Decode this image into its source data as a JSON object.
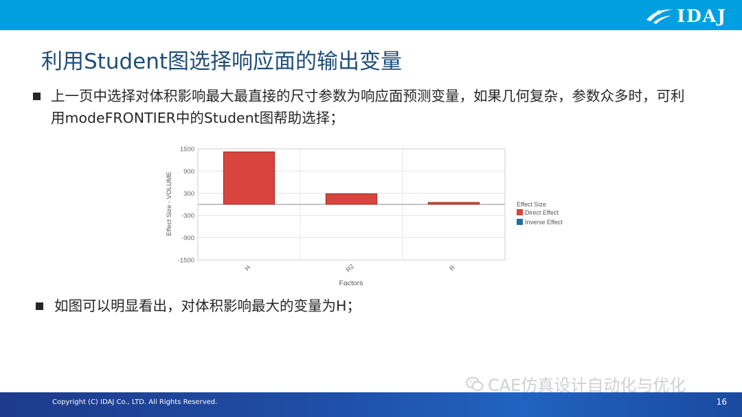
{
  "header": {
    "logo_text": "IDAJ"
  },
  "title": "利用Student图选择响应面的输出变量",
  "bullets": [
    "上一页中选择对体积影响最大最直接的尺寸参数为响应面预测变量，如果几何复杂，参数众多时，可利用modeFRONTIER中的Student图帮助选择；",
    "如图可以明显看出，对体积影响最大的变量为H；"
  ],
  "chart_data": {
    "type": "bar",
    "categories": [
      "H",
      "R2",
      "R"
    ],
    "series": [
      {
        "name": "Direct Effect",
        "values": [
          1420,
          290,
          55
        ],
        "color": "#d9443f"
      },
      {
        "name": "Inverse Effect",
        "values": [
          0,
          0,
          0
        ],
        "color": "#1f6fa0"
      }
    ],
    "xlabel": "Factors",
    "ylabel": "Effect Size - VOLUME",
    "yticks": [
      "1500",
      "900",
      "300",
      "-300",
      "-900",
      "-1500"
    ],
    "ylim": [
      -1500,
      1500
    ],
    "legend_title": "Effect Size",
    "legend_position": "right",
    "grid": true
  },
  "watermark": "CAE仿真设计自动化与优化",
  "footer": {
    "copyright": "Copyright (C) IDAJ Co., LTD. All Rights Reserved.",
    "page": "16"
  }
}
